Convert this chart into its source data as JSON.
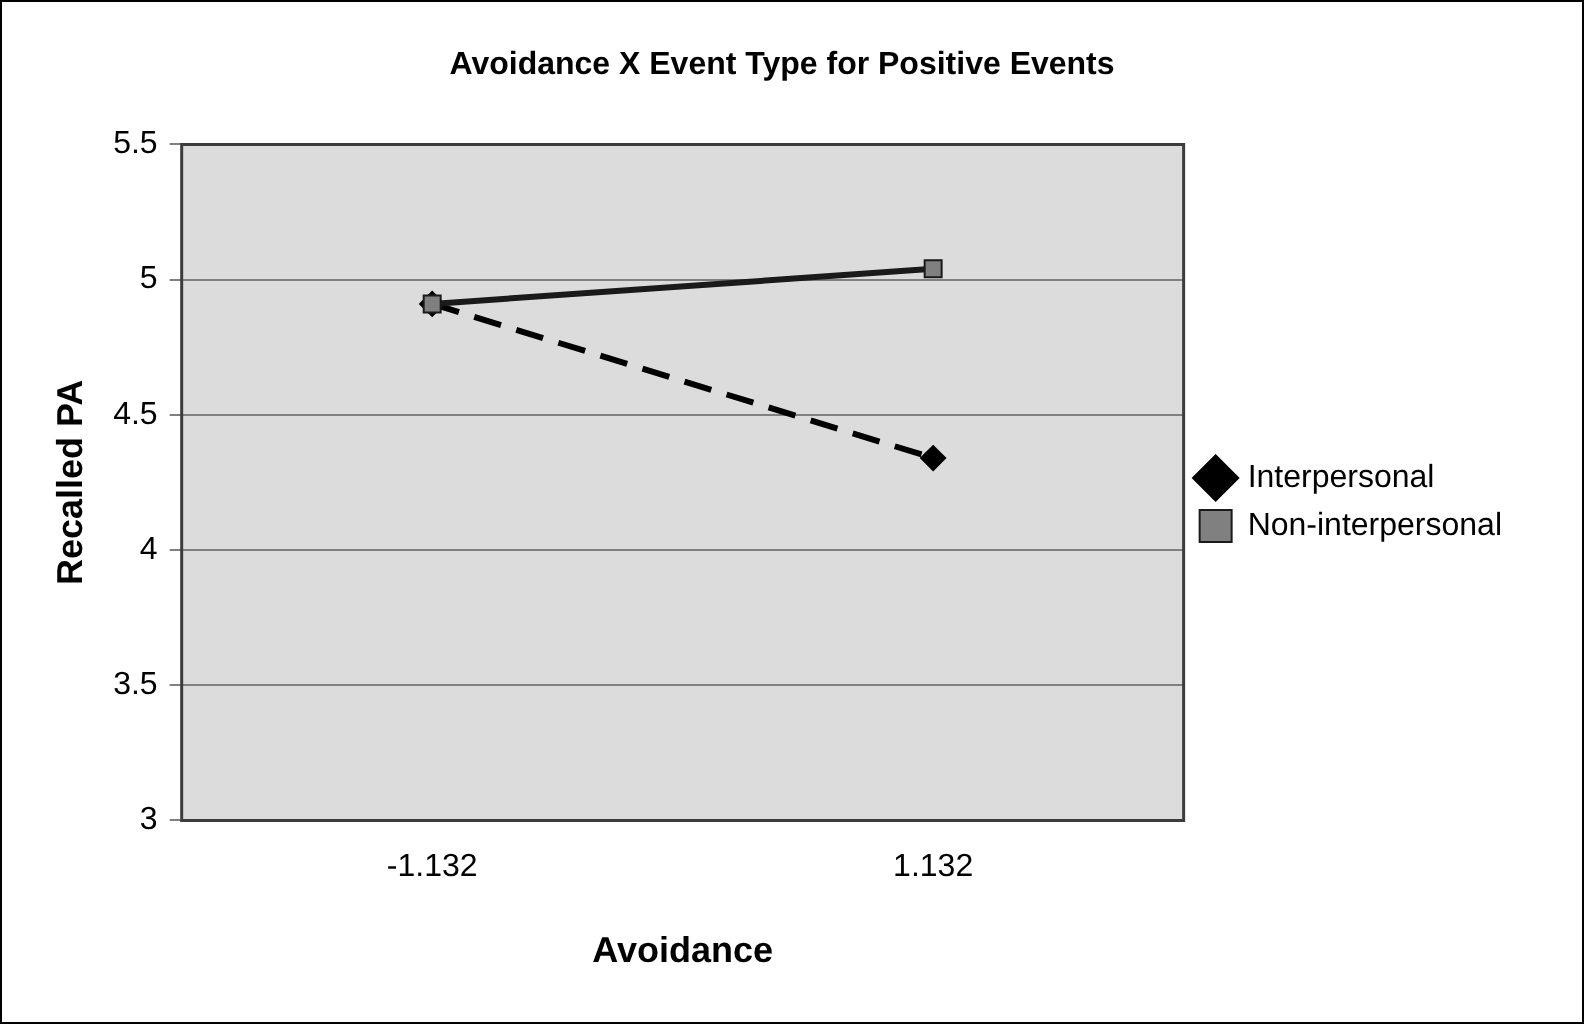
{
  "chart_data": {
    "type": "line",
    "title": "Avoidance X Event Type for Positive Events",
    "xlabel": "Avoidance",
    "ylabel": "Recalled PA",
    "categories": [
      "-1.132",
      "1.132"
    ],
    "series": [
      {
        "name": "Interpersonal",
        "color": "#000000",
        "values": [
          4.91,
          4.34
        ],
        "marker": "diamond",
        "line_style": "dashed"
      },
      {
        "name": "Non-interpersonal",
        "color": "#1a1a1a",
        "values": [
          4.91,
          5.04
        ],
        "marker": "square",
        "line_style": "solid"
      }
    ],
    "ylim": [
      3,
      5.5
    ],
    "yticks": [
      3,
      3.5,
      4,
      4.5,
      5,
      5.5
    ],
    "grid": "y",
    "legend": "right"
  }
}
